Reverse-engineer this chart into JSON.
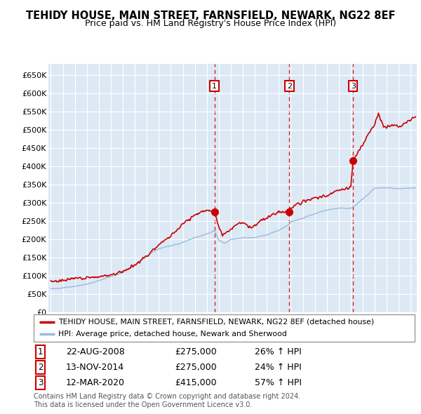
{
  "title": "TEHIDY HOUSE, MAIN STREET, FARNSFIELD, NEWARK, NG22 8EF",
  "subtitle": "Price paid vs. HM Land Registry's House Price Index (HPI)",
  "ylim": [
    0,
    680000
  ],
  "yticks": [
    0,
    50000,
    100000,
    150000,
    200000,
    250000,
    300000,
    350000,
    400000,
    450000,
    500000,
    550000,
    600000,
    650000
  ],
  "ytick_labels": [
    "£0",
    "£50K",
    "£100K",
    "£150K",
    "£200K",
    "£250K",
    "£300K",
    "£350K",
    "£400K",
    "£450K",
    "£500K",
    "£550K",
    "£600K",
    "£650K"
  ],
  "xlim_start": 1994.8,
  "xlim_end": 2025.5,
  "background_color": "#dce9f5",
  "grid_color": "#ffffff",
  "red_line_color": "#cc0000",
  "blue_line_color": "#99bbdd",
  "transaction_marker_color": "#cc0000",
  "transactions": [
    {
      "num": 1,
      "date_num": 2008.64,
      "price": 275000,
      "date_str": "22-AUG-2008",
      "price_str": "£275,000",
      "hpi_pct": "26%"
    },
    {
      "num": 2,
      "date_num": 2014.87,
      "price": 275000,
      "date_str": "13-NOV-2014",
      "price_str": "£275,000",
      "hpi_pct": "24%"
    },
    {
      "num": 3,
      "date_num": 2020.19,
      "price": 415000,
      "date_str": "12-MAR-2020",
      "price_str": "£415,000",
      "hpi_pct": "57%"
    }
  ],
  "legend_red_label": "TEHIDY HOUSE, MAIN STREET, FARNSFIELD, NEWARK, NG22 8EF (detached house)",
  "legend_blue_label": "HPI: Average price, detached house, Newark and Sherwood",
  "footer_text": "Contains HM Land Registry data © Crown copyright and database right 2024.\nThis data is licensed under the Open Government Licence v3.0."
}
